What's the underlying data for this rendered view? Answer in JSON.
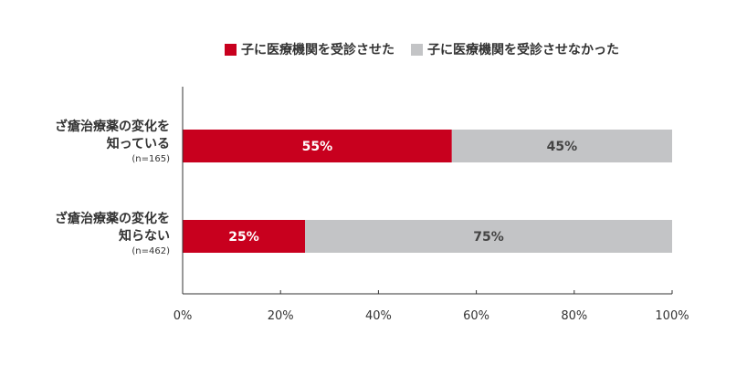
{
  "chart_data": {
    "type": "bar",
    "orientation": "horizontal",
    "stacked": true,
    "legend_position": "top",
    "categories": [
      {
        "lines": [
          "ざ瘡治療薬の変化を",
          "知っている"
        ],
        "n": "(n=165)"
      },
      {
        "lines": [
          "ざ瘡治療薬の変化を",
          "知らない"
        ],
        "n": "(n=462)"
      }
    ],
    "series": [
      {
        "name": "子に医療機関を受診させた",
        "color": "#c8001e",
        "values": [
          55,
          25
        ]
      },
      {
        "name": "子に医療機関を受診させなかった",
        "color": "#c3c4c6",
        "values": [
          45,
          75
        ]
      }
    ],
    "data_labels": [
      [
        "55%",
        "25%"
      ],
      [
        "45%",
        "75%"
      ]
    ],
    "xlim": [
      0,
      100
    ],
    "xticks": [
      "0%",
      "20%",
      "40%",
      "60%",
      "80%",
      "100%"
    ],
    "grid": false
  }
}
